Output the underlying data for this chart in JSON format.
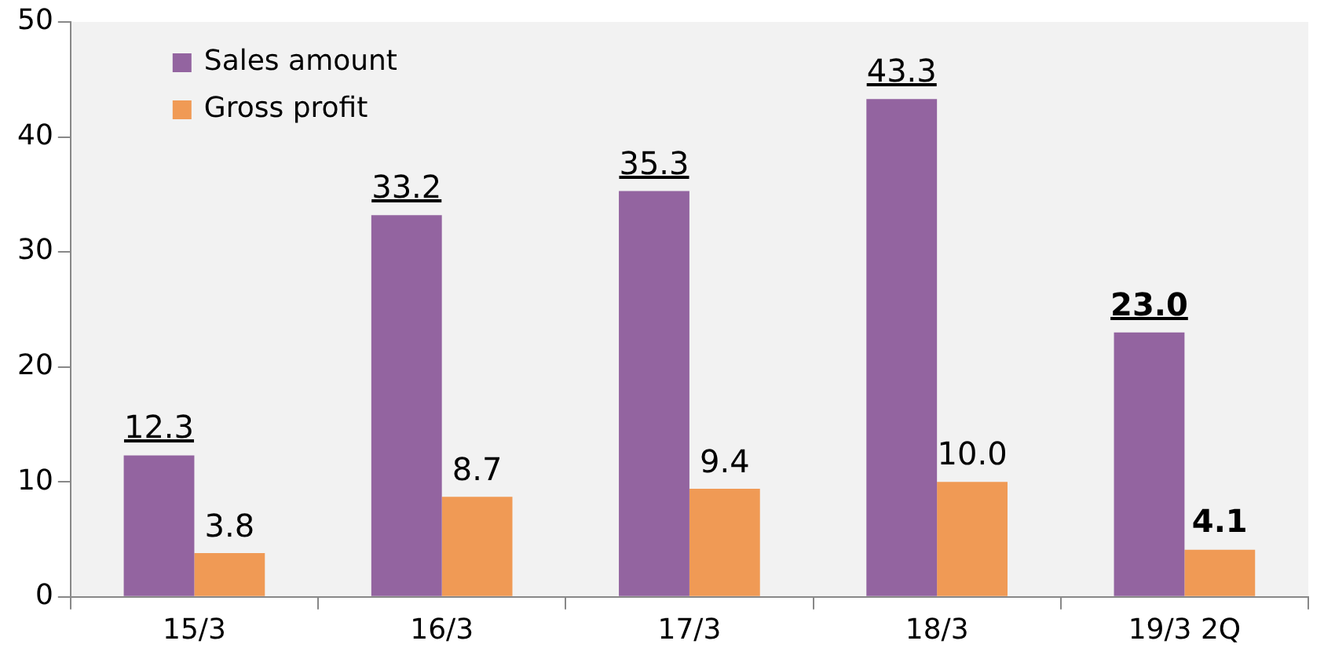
{
  "chart_data": {
    "type": "bar",
    "categories": [
      "15/3",
      "16/3",
      "17/3",
      "18/3",
      "19/3 2Q"
    ],
    "series": [
      {
        "name": "Sales amount",
        "color": "#9364a0",
        "values": [
          12.3,
          33.2,
          35.3,
          43.3,
          23.0
        ],
        "value_labels": [
          "12.3",
          "33.2",
          "35.3",
          "43.3",
          "23.0"
        ]
      },
      {
        "name": "Gross profit",
        "color": "#f09a55",
        "values": [
          3.8,
          8.7,
          9.4,
          10.0,
          4.1
        ],
        "value_labels": [
          "3.8",
          "8.7",
          "9.4",
          "10.0",
          "4.1"
        ]
      }
    ],
    "ylim": [
      0,
      50
    ],
    "yticks": [
      0,
      10,
      20,
      30,
      40,
      50
    ],
    "grid": false,
    "legend": "top left"
  }
}
